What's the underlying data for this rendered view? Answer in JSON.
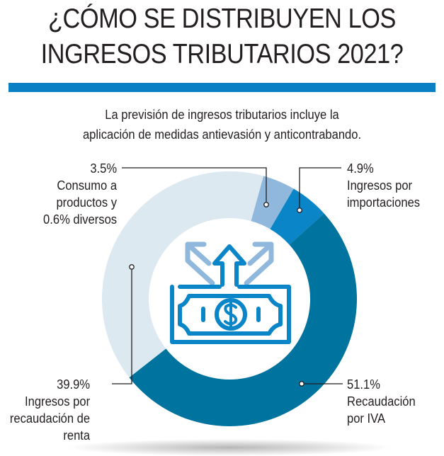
{
  "title_line1": "¿CÓMO SE DISTRIBUYEN LOS",
  "title_line2": "INGRESOS TRIBUTARIOS 2021?",
  "subtitle_line1": "La previsión de ingresos tributarios incluye la",
  "subtitle_line2": "aplicación de medidas antievasión y anticontrabando.",
  "colors": {
    "accent_bar": "#0a7fc4",
    "consumo": "#8fb8dc",
    "importaciones": "#0a85c8",
    "iva": "#00739f",
    "renta": "#dce9f1"
  },
  "chart_data": {
    "type": "pie",
    "donut": true,
    "title": "¿CÓMO SE DISTRIBUYEN LOS INGRESOS TRIBUTARIOS 2021?",
    "slices": [
      {
        "name": "Consumo a productos y diversos",
        "value": 4.1,
        "color": "#8fb8dc",
        "label": {
          "pct": "3.5%",
          "lines": [
            "Consumo a",
            "productos y",
            "0.6% diversos"
          ]
        }
      },
      {
        "name": "Ingresos por importaciones",
        "value": 4.9,
        "color": "#0a85c8",
        "label": {
          "pct": "4.9%",
          "lines": [
            "Ingresos por",
            "importaciones"
          ]
        }
      },
      {
        "name": "Recaudación por IVA",
        "value": 51.1,
        "color": "#00739f",
        "label": {
          "pct": "51.1%",
          "lines": [
            "Recaudación",
            "por IVA"
          ]
        }
      },
      {
        "name": "Ingresos por recaudación de renta",
        "value": 39.9,
        "color": "#dce9f1",
        "label": {
          "pct": "39.9%",
          "lines": [
            "Ingresos por",
            "recaudación de",
            "renta"
          ]
        }
      }
    ],
    "center_icon": "money-bill-arrows-icon"
  }
}
